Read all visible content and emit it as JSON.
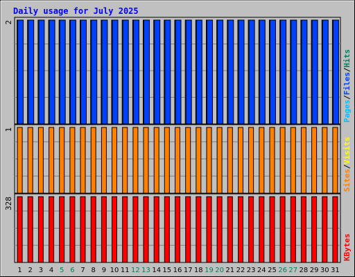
{
  "chart_data": {
    "type": "bar",
    "title": "Daily usage for July 2025",
    "categories": [
      "1",
      "2",
      "3",
      "4",
      "5",
      "6",
      "7",
      "8",
      "9",
      "10",
      "11",
      "12",
      "13",
      "14",
      "15",
      "16",
      "17",
      "18",
      "19",
      "20",
      "21",
      "22",
      "23",
      "24",
      "25",
      "26",
      "27",
      "28",
      "29",
      "30",
      "31"
    ],
    "weekend_days": [
      "5",
      "6",
      "12",
      "13",
      "19",
      "20",
      "26",
      "27"
    ],
    "panels": [
      {
        "name": "hits-files-pages",
        "ymax_label": "2",
        "ymax": 2,
        "series": [
          {
            "name": "Hits",
            "color": "#00805c",
            "values": [
              2,
              2,
              2,
              2,
              2,
              2,
              2,
              2,
              2,
              2,
              2,
              2,
              2,
              2,
              2,
              2,
              2,
              2,
              2,
              2,
              2,
              2,
              2,
              2,
              2,
              2,
              2,
              2,
              2,
              2,
              2
            ]
          },
          {
            "name": "Files",
            "color": "#0040ff",
            "values": [
              2,
              2,
              2,
              2,
              2,
              2,
              2,
              2,
              2,
              2,
              2,
              2,
              2,
              2,
              2,
              2,
              2,
              2,
              2,
              2,
              2,
              2,
              2,
              2,
              2,
              2,
              2,
              2,
              2,
              2,
              2
            ]
          },
          {
            "name": "Pages",
            "color": "#00c0ff",
            "values": [
              0,
              0,
              0,
              0,
              0,
              0,
              0,
              0,
              0,
              0,
              0,
              0,
              0,
              0,
              0,
              0,
              0,
              0,
              0,
              0,
              0,
              0,
              0,
              0,
              0,
              0,
              0,
              0,
              0,
              0,
              0
            ]
          }
        ],
        "legend_separators": [
          "/",
          "/"
        ]
      },
      {
        "name": "visits-sites",
        "ymax_label": "1",
        "ymax": 1,
        "series": [
          {
            "name": "Visits",
            "color": "#ffff00",
            "values": [
              0,
              0,
              0,
              0,
              0,
              0,
              0,
              0,
              0,
              0,
              0,
              0,
              0,
              0,
              0,
              0,
              0,
              0,
              0,
              0,
              0,
              0,
              0,
              0,
              0,
              0,
              0,
              0,
              0,
              0,
              0
            ]
          },
          {
            "name": "Sites",
            "color": "#ff8000",
            "values": [
              1,
              1,
              1,
              1,
              1,
              1,
              1,
              1,
              1,
              1,
              1,
              1,
              1,
              1,
              1,
              1,
              1,
              1,
              1,
              1,
              1,
              1,
              1,
              1,
              1,
              1,
              1,
              1,
              1,
              1,
              1
            ]
          }
        ],
        "legend_separators": [
          "/"
        ]
      },
      {
        "name": "kbytes",
        "ymax_label": "328",
        "ymax": 328,
        "series": [
          {
            "name": "KBytes",
            "color": "#ff0000",
            "values": [
              328,
              328,
              328,
              328,
              328,
              328,
              328,
              328,
              328,
              328,
              328,
              328,
              328,
              328,
              328,
              328,
              328,
              328,
              328,
              328,
              328,
              328,
              328,
              328,
              328,
              328,
              328,
              328,
              328,
              328,
              328
            ]
          }
        ],
        "legend_separators": []
      }
    ],
    "colors": {
      "background": "#c0c0c0",
      "plot": "#c0c0c0",
      "title": "#0000ff",
      "weekday_label": "#000000",
      "weekend_label": "#00805c"
    },
    "grid": true
  }
}
